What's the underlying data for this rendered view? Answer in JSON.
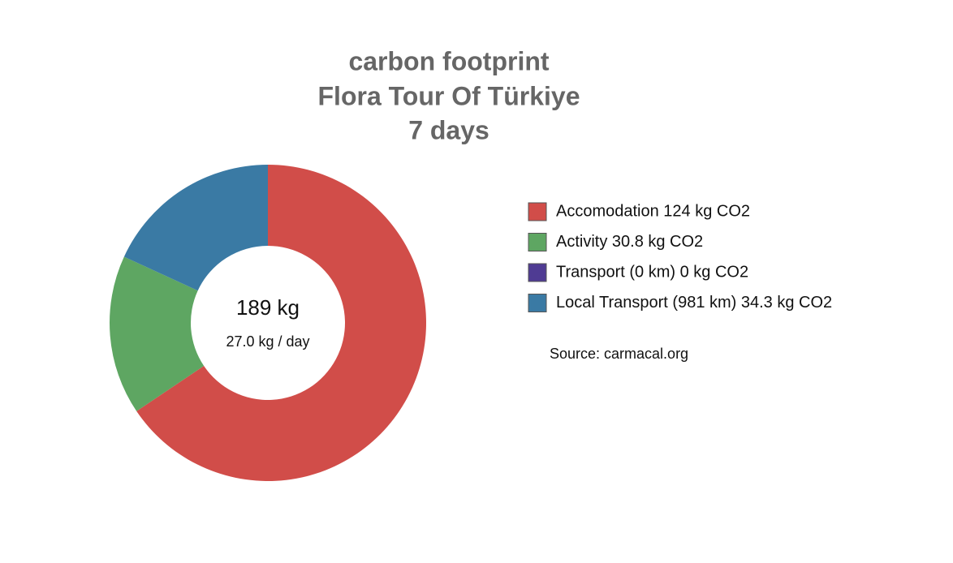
{
  "chart_data": {
    "type": "donut",
    "title": [
      "carbon footprint",
      "Flora Tour Of Türkiye",
      "7 days"
    ],
    "categories": [
      "Accomodation 124 kg CO2",
      "Activity 30.8 kg CO2",
      "Transport (0 km) 0 kg CO2",
      "Local Transport (981 km) 34.3 kg CO2"
    ],
    "values": [
      124,
      30.8,
      0,
      34.3
    ],
    "colors": [
      "#d14d49",
      "#5ea662",
      "#4f3b93",
      "#3a7aa4"
    ],
    "center_label": "189 kg",
    "center_sublabel": "27.0 kg / day",
    "source": "Source: carmacal.org"
  }
}
